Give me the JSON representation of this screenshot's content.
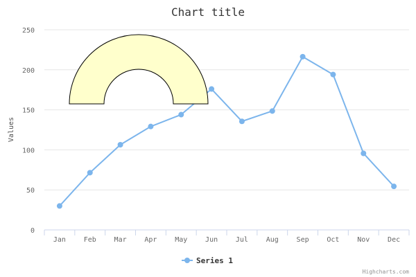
{
  "chart_data": {
    "type": "line",
    "title": "Chart title",
    "ylabel": "Values",
    "xlabel": "",
    "categories": [
      "Jan",
      "Feb",
      "Mar",
      "Apr",
      "May",
      "Jun",
      "Jul",
      "Aug",
      "Sep",
      "Oct",
      "Nov",
      "Dec"
    ],
    "series": [
      {
        "name": "Series 1",
        "color": "#7cb5ec",
        "values": [
          29.9,
          71.5,
          106.4,
          129.2,
          144.0,
          176.0,
          135.6,
          148.5,
          216.4,
          194.1,
          95.6,
          54.4
        ]
      }
    ],
    "ylim": [
      0,
      250
    ],
    "yticks": [
      0,
      50,
      100,
      150,
      200,
      250
    ],
    "grid": true,
    "legend": "bottom-center",
    "annotation": {
      "shape": "half-annulus",
      "fill": "#ffffcc",
      "stroke": "#000000"
    },
    "credits": "Highcharts.com"
  }
}
